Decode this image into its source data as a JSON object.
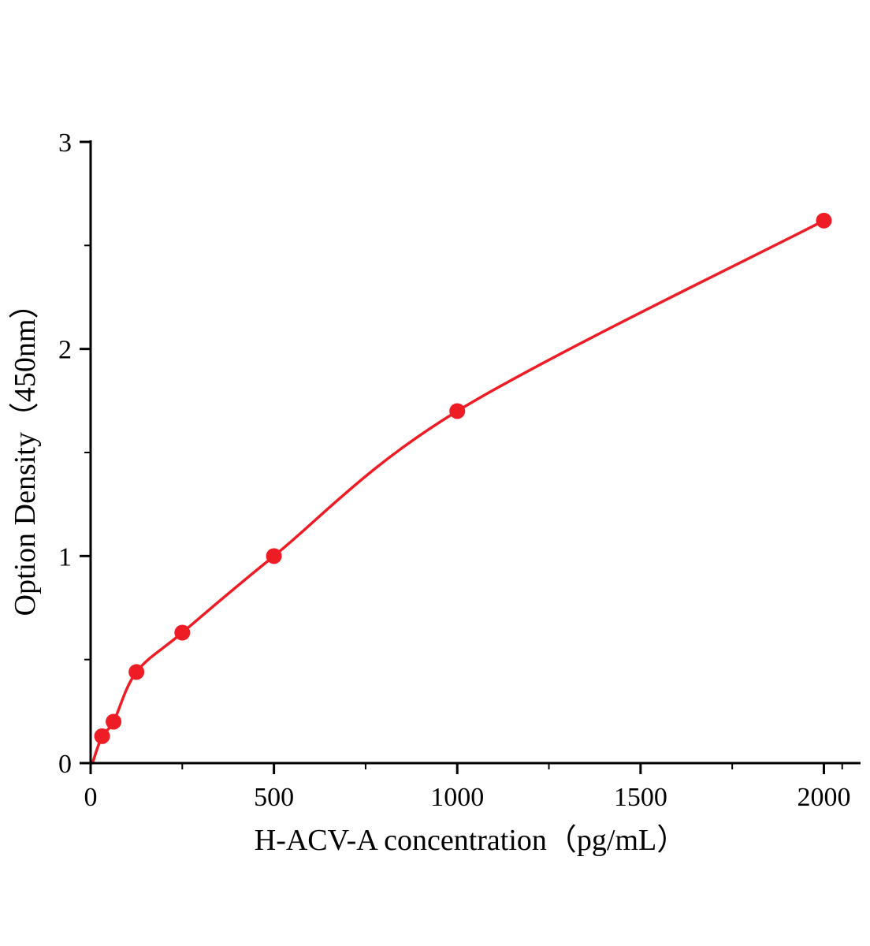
{
  "figure": {
    "background": "#ffffff"
  },
  "chart_data": {
    "type": "scatter",
    "title": "",
    "xlabel": "H-ACV-A concentration（pg/mL）",
    "ylabel": "Option Density（450nm）",
    "x": [
      31.25,
      62.5,
      125,
      250,
      500,
      1000,
      2000
    ],
    "y": [
      0.13,
      0.2,
      0.44,
      0.63,
      1.0,
      1.7,
      2.62
    ],
    "curve_start": {
      "x": 5,
      "y": 0.0
    },
    "xlim": [
      0,
      2100
    ],
    "ylim": [
      0,
      3
    ],
    "x_ticks": [
      0,
      500,
      1000,
      1500,
      2000
    ],
    "x_minor_ticks": [
      250,
      750,
      1250,
      1750,
      2050
    ],
    "y_ticks": [
      0,
      1,
      2,
      3
    ],
    "y_minor_ticks": [
      0.5,
      1.5,
      2.5
    ],
    "grid": false,
    "legend": "none",
    "line_color": "#ee1c25",
    "point_color": "#ee1c25",
    "axis_color": "#000000",
    "point_radius": 10,
    "line_width": 3.5
  }
}
